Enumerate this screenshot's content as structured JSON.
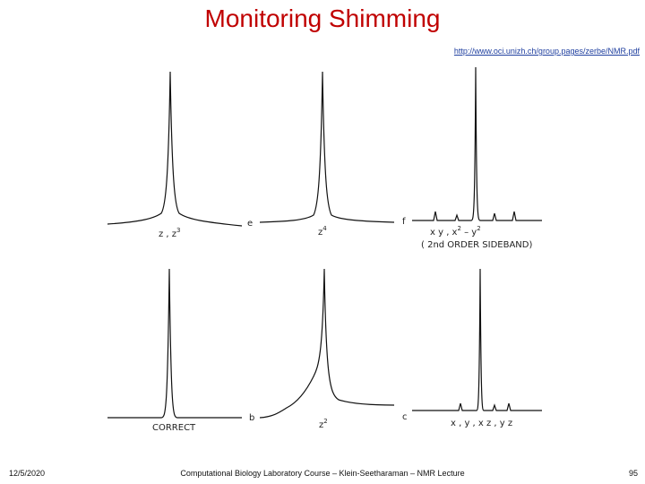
{
  "slide": {
    "title": "Monitoring Shimming",
    "source_link": "http://www.oci.unizh.ch/group.pages/zerbe/NMR.pdf",
    "footer_date": "12/5/2020",
    "footer_center": "Computational Biology Laboratory Course – Klein-Seetharaman – NMR Lecture",
    "page_number": "95"
  },
  "figure": {
    "panel_letters": [
      "e",
      "f",
      "b",
      "c"
    ],
    "labels": {
      "z_z3": "z , z",
      "z_z3_sup": "3",
      "z4": "z",
      "z4_sup": "4",
      "xy_line1": "x y ,  x",
      "xy_line1_sup": "2",
      "xy_line1_rest": " – y",
      "xy_line1_sup2": "2",
      "xy_line2": "( 2nd  ORDER  SIDEBAND)",
      "correct": "CORRECT",
      "z2": "z",
      "z2_sup": "2",
      "xyz": "x , y , x z ,  y z"
    }
  }
}
